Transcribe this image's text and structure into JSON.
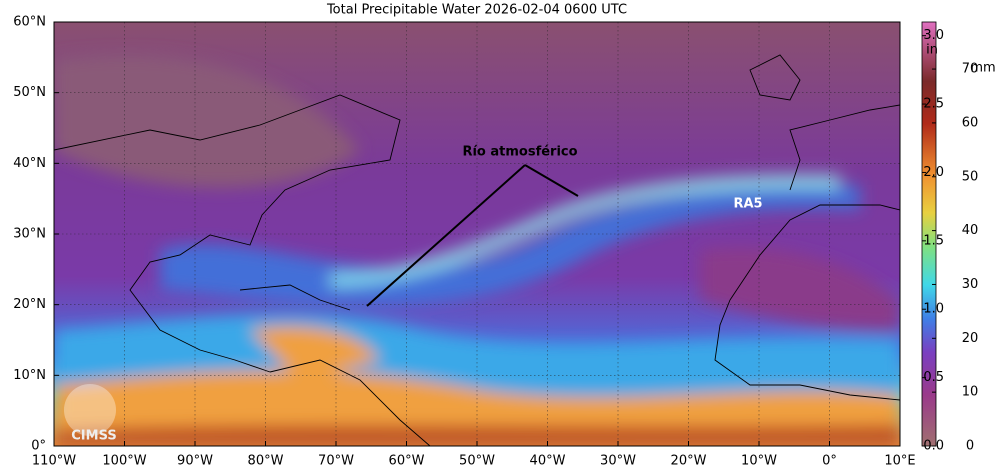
{
  "title": "Total Precipitable Water  2026-02-04 0600 UTC",
  "map": {
    "lat_labels": [
      "60°N",
      "50°N",
      "40°N",
      "30°N",
      "20°N",
      "10°N",
      "0°"
    ],
    "lon_labels": [
      "110°W",
      "100°W",
      "90°W",
      "80°W",
      "70°W",
      "60°W",
      "50°W",
      "40°W",
      "30°W",
      "20°W",
      "10°W",
      "0°",
      "10°E"
    ],
    "annotations": [
      "Río atmosférico",
      "RA5"
    ],
    "logo": "CIMSS"
  },
  "colorbar": {
    "in_label": "in",
    "mm_label": "mm",
    "in_lim": [
      0,
      3.1
    ],
    "mm_lim": [
      0,
      78.74
    ],
    "in_ticks": [
      {
        "value": 0,
        "label": "0.0"
      },
      {
        "value": 0.5,
        "label": "0.5"
      },
      {
        "value": 1,
        "label": "1.0"
      },
      {
        "value": 1.5,
        "label": "1.5"
      },
      {
        "value": 2,
        "label": "2.0"
      },
      {
        "value": 2.5,
        "label": "2.5"
      },
      {
        "value": 3,
        "label": "3.0"
      }
    ],
    "mm_ticks": [
      0,
      10,
      20,
      30,
      40,
      50,
      60,
      70
    ]
  }
}
